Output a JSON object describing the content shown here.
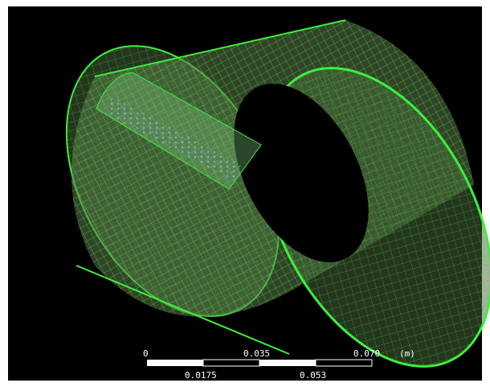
{
  "scale_bar": {
    "top_labels": [
      "0",
      "0.035",
      "0.070"
    ],
    "unit": "(m)",
    "bottom_labels": [
      "0.0175",
      "0.053"
    ]
  }
}
